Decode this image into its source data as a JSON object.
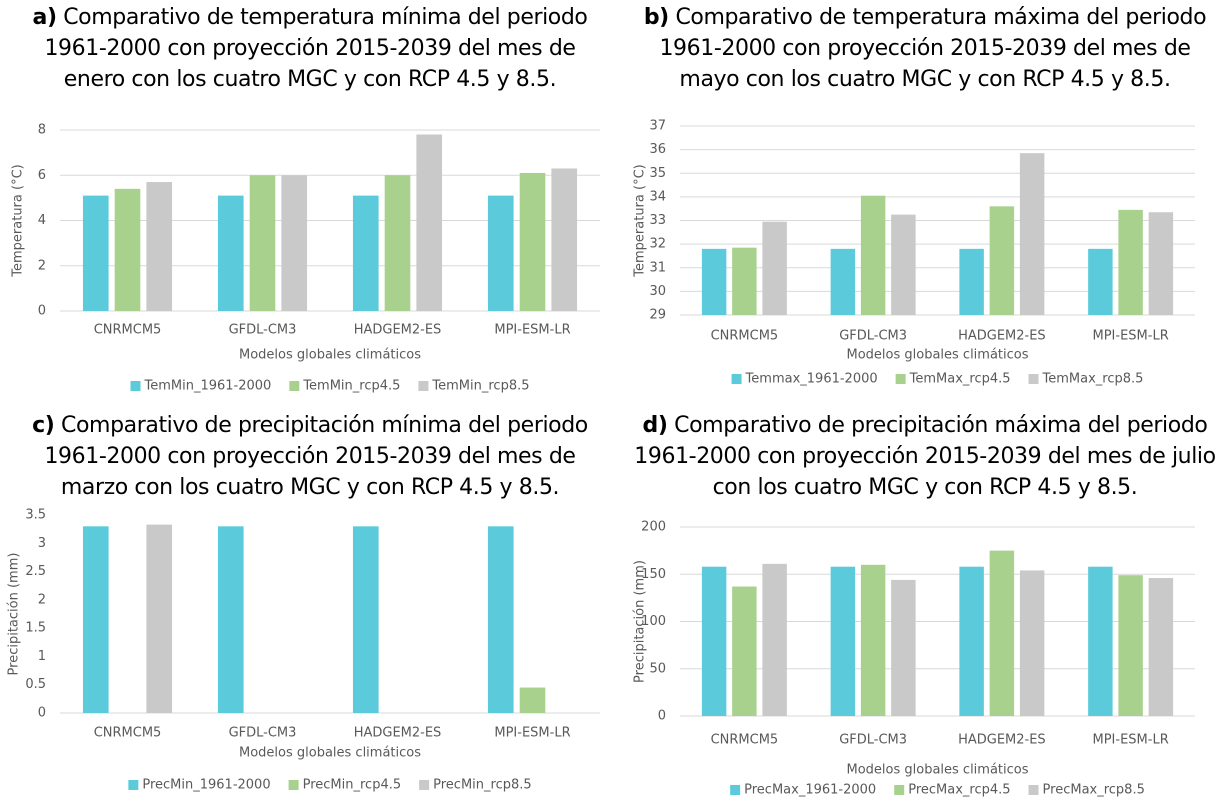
{
  "chart_data": [
    {
      "type": "bar",
      "label": "a)",
      "title": "Comparativo de temperatura mínima del periodo 1961-2000 con proyección 2015-2039 del mes de enero con los cuatro MGC y con RCP 4.5 y 8.5.",
      "x_label": "Modelos globales climáticos",
      "y_label": "Temperatura (°C)",
      "categories": [
        "CNRMCM5",
        "GFDL-CM3",
        "HADGEM2-ES",
        "MPI-ESM-LR"
      ],
      "series": [
        {
          "name": "TemMin_1961-2000",
          "color": "#5bcbdb",
          "values": [
            5.1,
            5.1,
            5.1,
            5.1
          ]
        },
        {
          "name": "TemMin_rcp4.5",
          "color": "#a9d18e",
          "values": [
            5.4,
            6.0,
            6.0,
            6.1
          ]
        },
        {
          "name": "TemMin_rcp8.5",
          "color": "#c9c9c9",
          "values": [
            5.7,
            6.0,
            7.8,
            6.3
          ]
        }
      ],
      "ylim": [
        0,
        8
      ],
      "yticks": [
        0,
        2,
        4,
        6,
        8
      ],
      "grid": true,
      "legend": "bottom"
    },
    {
      "type": "bar",
      "label": "b)",
      "title": "Comparativo de temperatura máxima del periodo 1961-2000 con proyección 2015-2039 del mes de mayo con los cuatro MGC y con RCP 4.5 y 8.5.",
      "x_label": "Modelos globales climáticos",
      "y_label": "Temperatura (°C)",
      "categories": [
        "CNRMCM5",
        "GFDL-CM3",
        "HADGEM2-ES",
        "MPI-ESM-LR"
      ],
      "series": [
        {
          "name": "Temmax_1961-2000",
          "color": "#5bcbdb",
          "values": [
            31.8,
            31.8,
            31.8,
            31.8
          ]
        },
        {
          "name": "TemMax_rcp4.5",
          "color": "#a9d18e",
          "values": [
            31.85,
            34.05,
            33.6,
            33.45
          ]
        },
        {
          "name": "TemMax_rcp8.5",
          "color": "#c9c9c9",
          "values": [
            32.95,
            33.25,
            35.85,
            33.35
          ]
        }
      ],
      "ylim": [
        29,
        37
      ],
      "yticks": [
        29,
        30,
        31,
        32,
        33,
        34,
        35,
        36,
        37
      ],
      "grid": true,
      "legend": "bottom"
    },
    {
      "type": "bar",
      "label": "c)",
      "title": "Comparativo de precipitación mínima del periodo 1961-2000 con proyección 2015-2039 del mes de marzo con los cuatro MGC y con RCP 4.5 y 8.5.",
      "x_label": "Modelos globales climáticos",
      "y_label": "Precipitación (mm)",
      "categories": [
        "CNRMCM5",
        "GFDL-CM3",
        "HADGEM2-ES",
        "MPI-ESM-LR"
      ],
      "series": [
        {
          "name": "PrecMin_1961-2000",
          "color": "#5bcbdb",
          "values": [
            3.3,
            3.3,
            3.3,
            3.3
          ]
        },
        {
          "name": "PrecMin_rcp4.5",
          "color": "#a9d18e",
          "values": [
            0,
            0,
            0,
            0.45
          ]
        },
        {
          "name": "PrecMin_rcp8.5",
          "color": "#c9c9c9",
          "values": [
            3.33,
            0,
            0,
            0
          ]
        }
      ],
      "ylim": [
        0,
        3.5
      ],
      "yticks": [
        0,
        0.5,
        1,
        1.5,
        2,
        2.5,
        3,
        3.5
      ],
      "grid": false,
      "legend": "bottom"
    },
    {
      "type": "bar",
      "label": "d)",
      "title": "Comparativo de precipitación máxima del periodo 1961-2000 con proyección 2015-2039 del mes de julio con los cuatro MGC y con RCP 4.5 y 8.5.",
      "x_label": "Modelos globales climáticos",
      "y_label": "Precipitación (mm)",
      "categories": [
        "CNRMCM5",
        "GFDL-CM3",
        "HADGEM2-ES",
        "MPI-ESM-LR"
      ],
      "series": [
        {
          "name": "PrecMax_1961-2000",
          "color": "#5bcbdb",
          "values": [
            158,
            158,
            158,
            158
          ]
        },
        {
          "name": "PrecMax_rcp4.5",
          "color": "#a9d18e",
          "values": [
            137,
            160,
            175,
            149
          ]
        },
        {
          "name": "PrecMax_rcp8.5",
          "color": "#c9c9c9",
          "values": [
            161,
            144,
            154,
            146
          ]
        }
      ],
      "ylim": [
        0,
        200
      ],
      "yticks": [
        0,
        50,
        100,
        150,
        200
      ],
      "grid": true,
      "legend": "bottom"
    }
  ]
}
